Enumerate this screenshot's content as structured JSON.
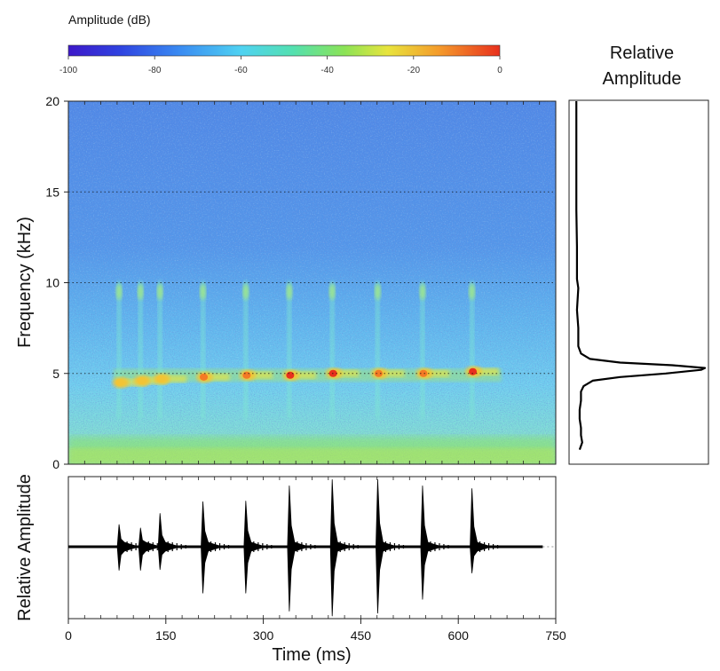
{
  "colorbar": {
    "label": "Amplitude (dB)",
    "ticks": [
      "-100",
      "-80",
      "-60",
      "-40",
      "-20",
      "0"
    ],
    "min": -100,
    "max": 0
  },
  "chart_data": [
    {
      "type": "heatmap",
      "title": "",
      "xlabel": "",
      "ylabel": "Frequency (kHz)",
      "ylim": [
        0,
        20
      ],
      "y_ticks": [
        "0",
        "5",
        "10",
        "15",
        "20"
      ],
      "dotted_gridlines_khz": [
        5,
        10,
        15
      ],
      "calls": [
        {
          "t_ms": 78,
          "freq_khz": 4.5,
          "level_db": -22
        },
        {
          "t_ms": 111,
          "freq_khz": 4.6,
          "level_db": -24
        },
        {
          "t_ms": 141,
          "freq_khz": 4.7,
          "level_db": -24
        },
        {
          "t_ms": 207,
          "freq_khz": 4.8,
          "level_db": -18
        },
        {
          "t_ms": 273,
          "freq_khz": 4.9,
          "level_db": -15
        },
        {
          "t_ms": 340,
          "freq_khz": 4.9,
          "level_db": -12
        },
        {
          "t_ms": 406,
          "freq_khz": 5.0,
          "level_db": -12
        },
        {
          "t_ms": 476,
          "freq_khz": 5.0,
          "level_db": -15
        },
        {
          "t_ms": 545,
          "freq_khz": 5.0,
          "level_db": -15
        },
        {
          "t_ms": 621,
          "freq_khz": 5.1,
          "level_db": -10
        }
      ],
      "harmonic_khz": 9.5,
      "low_band_khz": [
        0,
        1.5
      ],
      "background_db": -80
    },
    {
      "type": "line",
      "title": "Relative Amplitude",
      "xlabel": "",
      "ylabel": "",
      "shared_y": "Frequency (kHz)",
      "peak_khz": 5.3,
      "profile": [
        {
          "f": 0.8,
          "a": 0.04
        },
        {
          "f": 1.2,
          "a": 0.06
        },
        {
          "f": 1.6,
          "a": 0.05
        },
        {
          "f": 2.0,
          "a": 0.05
        },
        {
          "f": 2.5,
          "a": 0.04
        },
        {
          "f": 3.0,
          "a": 0.04
        },
        {
          "f": 3.5,
          "a": 0.05
        },
        {
          "f": 4.0,
          "a": 0.05
        },
        {
          "f": 4.3,
          "a": 0.07
        },
        {
          "f": 4.6,
          "a": 0.14
        },
        {
          "f": 4.8,
          "a": 0.35
        },
        {
          "f": 5.0,
          "a": 0.7
        },
        {
          "f": 5.2,
          "a": 0.97
        },
        {
          "f": 5.3,
          "a": 1.0
        },
        {
          "f": 5.45,
          "a": 0.75
        },
        {
          "f": 5.6,
          "a": 0.35
        },
        {
          "f": 5.8,
          "a": 0.12
        },
        {
          "f": 6.1,
          "a": 0.05
        },
        {
          "f": 6.5,
          "a": 0.03
        },
        {
          "f": 7.5,
          "a": 0.03
        },
        {
          "f": 8.5,
          "a": 0.02
        },
        {
          "f": 9.7,
          "a": 0.03
        },
        {
          "f": 10.2,
          "a": 0.02
        },
        {
          "f": 12,
          "a": 0.02
        },
        {
          "f": 14,
          "a": 0.015
        },
        {
          "f": 16,
          "a": 0.015
        },
        {
          "f": 18,
          "a": 0.015
        },
        {
          "f": 20,
          "a": 0.015
        }
      ]
    },
    {
      "type": "line",
      "title": "",
      "xlabel": "Time (ms)",
      "ylabel": "Relative Amplitude",
      "xlim": [
        0,
        750
      ],
      "x_ticks": [
        "0",
        "150",
        "300",
        "450",
        "600",
        "750"
      ],
      "ylim": [
        -1,
        1
      ],
      "waveform_start_ms": 0,
      "waveform_end_ms": 730,
      "pulses": [
        {
          "t_ms": 78,
          "up": 0.32,
          "down": 0.34
        },
        {
          "t_ms": 111,
          "up": 0.27,
          "down": 0.34
        },
        {
          "t_ms": 141,
          "up": 0.48,
          "down": 0.33
        },
        {
          "t_ms": 207,
          "up": 0.65,
          "down": 0.67
        },
        {
          "t_ms": 273,
          "up": 0.66,
          "down": 0.67
        },
        {
          "t_ms": 340,
          "up": 0.88,
          "down": 0.93
        },
        {
          "t_ms": 406,
          "up": 0.97,
          "down": 1.0
        },
        {
          "t_ms": 476,
          "up": 0.97,
          "down": 0.96
        },
        {
          "t_ms": 545,
          "up": 0.88,
          "down": 0.76
        },
        {
          "t_ms": 621,
          "up": 0.84,
          "down": 0.38
        }
      ]
    }
  ]
}
